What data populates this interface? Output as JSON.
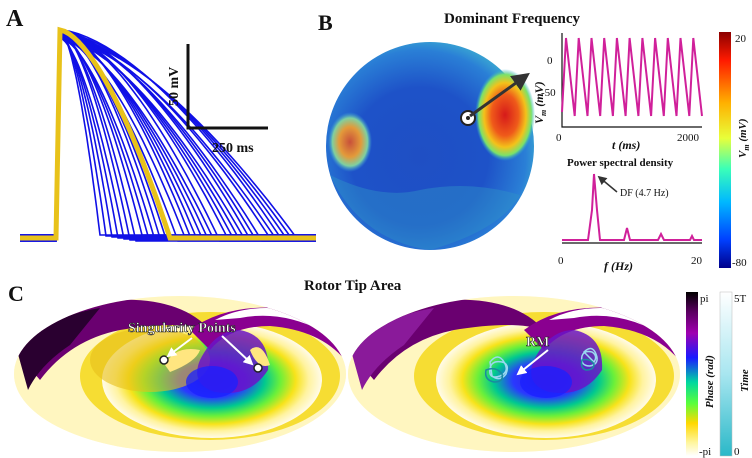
{
  "panels": {
    "a": {
      "letter": "A"
    },
    "b": {
      "letter": "B",
      "title": "Dominant Frequency"
    },
    "c": {
      "letter": "C",
      "title": "Rotor Tip Area"
    }
  },
  "scale_bar": {
    "voltage_label": "50 mV",
    "time_label": "250 ms"
  },
  "voltage_trace": {
    "ylabel": "V",
    "ylabel_sub": "m",
    "ylabel_unit": "(mV)",
    "xlabel": "t (ms)",
    "y_ticks": [
      "0",
      "-50"
    ],
    "x_ticks": [
      "0",
      "2000"
    ]
  },
  "psd": {
    "title": "Power spectral density",
    "annotation": "DF (4.7 Hz)",
    "xlabel": "f (Hz)",
    "x_ticks": [
      "0",
      "10",
      "20"
    ]
  },
  "colorbar_b": {
    "max_label": "20",
    "min_label": "-80",
    "label": "V",
    "label_sub": "m",
    "label_unit": "(mV)"
  },
  "colorbar_c": {
    "phase_max": "pi",
    "phase_min": "-pi",
    "phase_label": "Phase (rad)",
    "time_max": "5T",
    "time_min": "0",
    "time_label": "Time"
  },
  "annotations": {
    "singularity": "Singularity Points",
    "rm": "RM"
  },
  "colors": {
    "trace_blue": "#1010e6",
    "trace_yellow": "#e8c21a",
    "magenta": "#d0209a",
    "sphere_blue": "#1a3fbf"
  }
}
